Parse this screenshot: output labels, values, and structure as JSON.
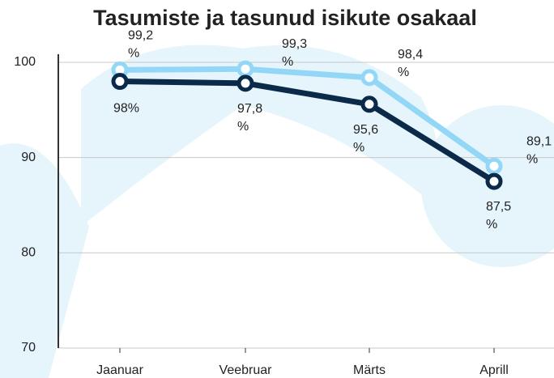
{
  "chart_data": {
    "type": "line",
    "title": "Tasumiste ja tasunud isikute osakaal",
    "categories": [
      "Jaanuar",
      "Veebruar",
      "Märts",
      "Aprill"
    ],
    "series": [
      {
        "color": "#93d7f7",
        "values": [
          99.2,
          99.3,
          98.4,
          89.1
        ],
        "value_labels": [
          "99,2 %",
          "99,3 %",
          "98,4 %",
          "89,1 %"
        ]
      },
      {
        "color": "#0b2a4a",
        "values": [
          98,
          97.8,
          95.6,
          87.5
        ],
        "value_labels": [
          "98%",
          "97,8 %",
          "95,6 %",
          "87,5 %"
        ]
      }
    ],
    "ylim": [
      70,
      100
    ],
    "yticks": [
      70,
      80,
      90,
      100
    ],
    "grid": true
  }
}
